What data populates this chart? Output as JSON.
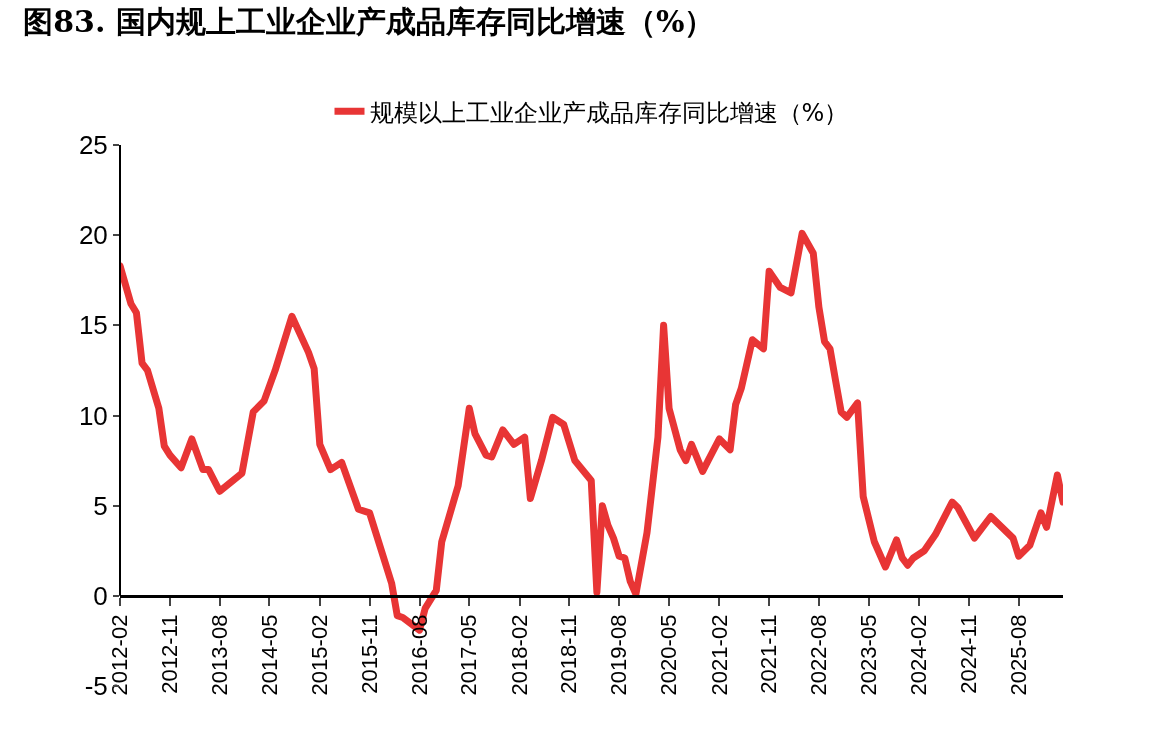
{
  "chart_data": {
    "type": "line",
    "title": "图83. 国内规上工业企业产成品库存同比增速（%）",
    "x": [
      "2012-02",
      "2012-04",
      "2012-05",
      "2012-06",
      "2012-07",
      "2012-09",
      "2012-10",
      "2012-11",
      "2013-01",
      "2013-03",
      "2013-05",
      "2013-06",
      "2013-08",
      "2013-10",
      "2013-12",
      "2014-02",
      "2014-04",
      "2014-06",
      "2014-09",
      "2014-12",
      "2015-01",
      "2015-02",
      "2015-04",
      "2015-06",
      "2015-09",
      "2015-11",
      "2016-03",
      "2016-04",
      "2016-05",
      "2016-08",
      "2016-09",
      "2016-11",
      "2016-12",
      "2017-03",
      "2017-05",
      "2017-06",
      "2017-08",
      "2017-09",
      "2017-11",
      "2018-01",
      "2018-03",
      "2018-04",
      "2018-06",
      "2018-08",
      "2018-10",
      "2018-12",
      "2019-03",
      "2019-04",
      "2019-05",
      "2019-06",
      "2019-07",
      "2019-08",
      "2019-09",
      "2019-10",
      "2019-11",
      "2020-01",
      "2020-03",
      "2020-04",
      "2020-05",
      "2020-07",
      "2020-08",
      "2020-09",
      "2020-11",
      "2020-12",
      "2021-02",
      "2021-04",
      "2021-05",
      "2021-06",
      "2021-08",
      "2021-10",
      "2021-11",
      "2022-01",
      "2022-03",
      "2022-05",
      "2022-07",
      "2022-08",
      "2022-09",
      "2022-10",
      "2022-11",
      "2022-12",
      "2023-01",
      "2023-03",
      "2023-04",
      "2023-06",
      "2023-08",
      "2023-10",
      "2023-11",
      "2023-12",
      "2024-01",
      "2024-03",
      "2024-05",
      "2024-08",
      "2024-09",
      "2024-12",
      "2025-03",
      "2025-07",
      "2025-08",
      "2025-10",
      "2025-12",
      "2026-01",
      "2026-03",
      "2026-04"
    ],
    "series": [
      {
        "name": "规模以上工业企业产成品库存同比增速（%）",
        "color": "#e83535",
        "values": [
          18.3,
          16.2,
          15.7,
          12.9,
          12.5,
          10.4,
          8.3,
          7.8,
          7.1,
          8.7,
          7.0,
          7.0,
          5.8,
          6.3,
          6.8,
          10.2,
          10.8,
          12.5,
          15.5,
          13.5,
          12.6,
          8.4,
          7.0,
          7.4,
          4.8,
          4.6,
          0.7,
          -1.1,
          -1.2,
          -1.9,
          -0.7,
          0.3,
          3.0,
          6.1,
          10.4,
          9.0,
          7.8,
          7.7,
          9.2,
          8.4,
          8.8,
          5.4,
          7.5,
          9.9,
          9.5,
          7.5,
          6.4,
          0.2,
          5.0,
          3.9,
          3.2,
          2.2,
          2.1,
          0.8,
          0.1,
          3.5,
          8.8,
          15.0,
          10.4,
          8.1,
          7.5,
          8.4,
          6.9,
          7.5,
          8.7,
          8.1,
          10.6,
          11.5,
          14.2,
          13.7,
          18.0,
          17.1,
          16.8,
          20.1,
          19.0,
          16.0,
          14.1,
          13.7,
          11.9,
          10.2,
          9.9,
          10.7,
          5.5,
          3.0,
          1.6,
          3.1,
          2.1,
          1.7,
          2.1,
          2.5,
          3.4,
          5.2,
          4.9,
          3.2,
          4.4,
          3.2,
          2.2,
          2.8,
          4.6,
          3.8,
          6.7,
          5.2
        ]
      }
    ],
    "xlim": [
      "2012-02",
      "2026-04"
    ],
    "xticks": [
      "2012-02",
      "2012-11",
      "2013-08",
      "2014-05",
      "2015-02",
      "2015-11",
      "2016-08",
      "2017-05",
      "2018-02",
      "2018-11",
      "2019-08",
      "2020-05",
      "2021-02",
      "2021-11",
      "2022-08",
      "2023-05",
      "2024-02",
      "2024-11",
      "2025-08"
    ],
    "ylim": [
      -5,
      25
    ],
    "yticks": [
      -5,
      0,
      5,
      10,
      15,
      20,
      25
    ],
    "grid": false,
    "legend": "top",
    "marker": "none",
    "line_style": "solid"
  }
}
